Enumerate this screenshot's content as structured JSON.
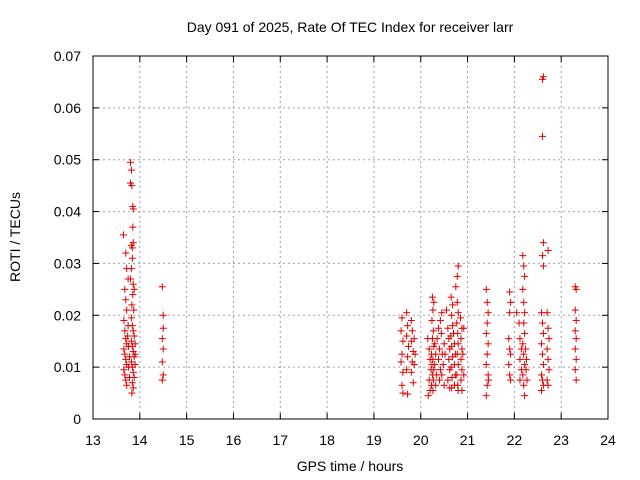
{
  "chart_data": {
    "type": "scatter",
    "title": "Day 091 of 2025, Rate Of TEC Index for receiver larr",
    "xlabel": "GPS time / hours",
    "ylabel": "ROTI / TECUs",
    "xlim": [
      13,
      24
    ],
    "ylim": [
      0,
      0.07
    ],
    "xticks": [
      "13",
      "14",
      "15",
      "16",
      "17",
      "18",
      "19",
      "20",
      "21",
      "22",
      "23",
      "24"
    ],
    "yticks": [
      "0",
      "0.01",
      "0.02",
      "0.03",
      "0.04",
      "0.05",
      "0.06",
      "0.07"
    ],
    "grid": true,
    "marker": "+",
    "color": "#e00000",
    "series": [
      {
        "name": "ROTI",
        "points": [
          [
            13.65,
            0.0355
          ],
          [
            13.7,
            0.032
          ],
          [
            13.72,
            0.029
          ],
          [
            13.75,
            0.027
          ],
          [
            13.68,
            0.025
          ],
          [
            13.7,
            0.023
          ],
          [
            13.72,
            0.021
          ],
          [
            13.66,
            0.019
          ],
          [
            13.68,
            0.017
          ],
          [
            13.7,
            0.0155
          ],
          [
            13.72,
            0.0145
          ],
          [
            13.66,
            0.0135
          ],
          [
            13.68,
            0.0125
          ],
          [
            13.7,
            0.0115
          ],
          [
            13.72,
            0.0105
          ],
          [
            13.66,
            0.0095
          ],
          [
            13.68,
            0.0085
          ],
          [
            13.7,
            0.0075
          ],
          [
            13.72,
            0.0065
          ],
          [
            13.75,
            0.018
          ],
          [
            13.74,
            0.016
          ],
          [
            13.76,
            0.014
          ],
          [
            13.78,
            0.012
          ],
          [
            13.76,
            0.01
          ],
          [
            13.78,
            0.008
          ],
          [
            13.8,
            0.0495
          ],
          [
            13.82,
            0.048
          ],
          [
            13.8,
            0.0455
          ],
          [
            13.83,
            0.045
          ],
          [
            13.85,
            0.041
          ],
          [
            13.86,
            0.0405
          ],
          [
            13.85,
            0.037
          ],
          [
            13.82,
            0.0335
          ],
          [
            13.84,
            0.033
          ],
          [
            13.86,
            0.034
          ],
          [
            13.84,
            0.031
          ],
          [
            13.82,
            0.029
          ],
          [
            13.8,
            0.027
          ],
          [
            13.86,
            0.026
          ],
          [
            13.88,
            0.025
          ],
          [
            13.85,
            0.024
          ],
          [
            13.83,
            0.022
          ],
          [
            13.87,
            0.021
          ],
          [
            13.82,
            0.0195
          ],
          [
            13.84,
            0.018
          ],
          [
            13.86,
            0.017
          ],
          [
            13.88,
            0.016
          ],
          [
            13.82,
            0.015
          ],
          [
            13.84,
            0.014
          ],
          [
            13.86,
            0.013
          ],
          [
            13.88,
            0.012
          ],
          [
            13.82,
            0.011
          ],
          [
            13.84,
            0.01
          ],
          [
            13.86,
            0.009
          ],
          [
            13.88,
            0.008
          ],
          [
            13.84,
            0.007
          ],
          [
            13.86,
            0.006
          ],
          [
            13.83,
            0.005
          ],
          [
            13.9,
            0.0145
          ],
          [
            13.9,
            0.0125
          ],
          [
            13.9,
            0.0105
          ],
          [
            14.48,
            0.0255
          ],
          [
            14.5,
            0.02
          ],
          [
            14.5,
            0.0175
          ],
          [
            14.48,
            0.0155
          ],
          [
            14.5,
            0.0135
          ],
          [
            14.48,
            0.011
          ],
          [
            14.5,
            0.0085
          ],
          [
            14.48,
            0.0075
          ],
          [
            19.6,
            0.0195
          ],
          [
            19.58,
            0.017
          ],
          [
            19.62,
            0.015
          ],
          [
            19.6,
            0.0125
          ],
          [
            19.58,
            0.011
          ],
          [
            19.62,
            0.009
          ],
          [
            19.6,
            0.0065
          ],
          [
            19.62,
            0.005
          ],
          [
            19.7,
            0.0205
          ],
          [
            19.72,
            0.018
          ],
          [
            19.7,
            0.016
          ],
          [
            19.74,
            0.014
          ],
          [
            19.72,
            0.012
          ],
          [
            19.7,
            0.0095
          ],
          [
            19.72,
            0.0048
          ],
          [
            19.8,
            0.019
          ],
          [
            19.82,
            0.017
          ],
          [
            19.8,
            0.015
          ],
          [
            19.84,
            0.013
          ],
          [
            19.82,
            0.011
          ],
          [
            19.8,
            0.009
          ],
          [
            19.84,
            0.007
          ],
          [
            19.86,
            0.0155
          ],
          [
            19.86,
            0.0105
          ],
          [
            19.88,
            0.0125
          ],
          [
            20.15,
            0.0155
          ],
          [
            20.18,
            0.0135
          ],
          [
            20.2,
            0.0115
          ],
          [
            20.22,
            0.0095
          ],
          [
            20.18,
            0.0075
          ],
          [
            20.2,
            0.0055
          ],
          [
            20.16,
            0.0045
          ],
          [
            20.25,
            0.0235
          ],
          [
            20.28,
            0.0225
          ],
          [
            20.26,
            0.021
          ],
          [
            20.24,
            0.019
          ],
          [
            20.27,
            0.017
          ],
          [
            20.25,
            0.0155
          ],
          [
            20.28,
            0.014
          ],
          [
            20.23,
            0.0125
          ],
          [
            20.26,
            0.0115
          ],
          [
            20.24,
            0.0105
          ],
          [
            20.28,
            0.0095
          ],
          [
            20.25,
            0.0085
          ],
          [
            20.27,
            0.0075
          ],
          [
            20.23,
            0.0065
          ],
          [
            20.26,
            0.0055
          ],
          [
            20.3,
            0.0145
          ],
          [
            20.32,
            0.0125
          ],
          [
            20.3,
            0.0105
          ],
          [
            20.34,
            0.0085
          ],
          [
            20.32,
            0.0065
          ],
          [
            20.35,
            0.0155
          ],
          [
            20.38,
            0.0175
          ],
          [
            20.4,
            0.0135
          ],
          [
            20.38,
            0.0115
          ],
          [
            20.42,
            0.0095
          ],
          [
            20.4,
            0.0075
          ],
          [
            20.42,
            0.019
          ],
          [
            20.45,
            0.0205
          ],
          [
            20.44,
            0.0165
          ],
          [
            20.46,
            0.0125
          ],
          [
            20.48,
            0.0105
          ],
          [
            20.45,
            0.0085
          ],
          [
            20.5,
            0.0145
          ],
          [
            20.52,
            0.0125
          ],
          [
            20.5,
            0.0065
          ],
          [
            20.55,
            0.021
          ],
          [
            20.58,
            0.0175
          ],
          [
            20.6,
            0.0155
          ],
          [
            20.62,
            0.0135
          ],
          [
            20.6,
            0.0115
          ],
          [
            20.62,
            0.0095
          ],
          [
            20.58,
            0.0075
          ],
          [
            20.62,
            0.006
          ],
          [
            20.65,
            0.0235
          ],
          [
            20.68,
            0.022
          ],
          [
            20.66,
            0.02
          ],
          [
            20.68,
            0.018
          ],
          [
            20.64,
            0.016
          ],
          [
            20.66,
            0.014
          ],
          [
            20.68,
            0.012
          ],
          [
            20.65,
            0.01
          ],
          [
            20.67,
            0.008
          ],
          [
            20.66,
            0.006
          ],
          [
            20.7,
            0.0165
          ],
          [
            20.72,
            0.0145
          ],
          [
            20.74,
            0.0125
          ],
          [
            20.72,
            0.0105
          ],
          [
            20.74,
            0.0085
          ],
          [
            20.72,
            0.0065
          ],
          [
            20.75,
            0.0255
          ],
          [
            20.78,
            0.0275
          ],
          [
            20.8,
            0.0295
          ],
          [
            20.78,
            0.0225
          ],
          [
            20.8,
            0.0205
          ],
          [
            20.77,
            0.0185
          ],
          [
            20.79,
            0.0165
          ],
          [
            20.8,
            0.0145
          ],
          [
            20.78,
            0.0125
          ],
          [
            20.8,
            0.0105
          ],
          [
            20.77,
            0.0085
          ],
          [
            20.79,
            0.0065
          ],
          [
            20.8,
            0.0055
          ],
          [
            20.85,
            0.0195
          ],
          [
            20.88,
            0.0175
          ],
          [
            20.86,
            0.0155
          ],
          [
            20.88,
            0.0135
          ],
          [
            20.86,
            0.0115
          ],
          [
            20.88,
            0.0095
          ],
          [
            20.86,
            0.0075
          ],
          [
            20.88,
            0.0055
          ],
          [
            20.92,
            0.0175
          ],
          [
            20.9,
            0.0125
          ],
          [
            20.92,
            0.0085
          ],
          [
            21.4,
            0.025
          ],
          [
            21.42,
            0.0225
          ],
          [
            21.44,
            0.0205
          ],
          [
            21.42,
            0.0185
          ],
          [
            21.4,
            0.0165
          ],
          [
            21.44,
            0.0145
          ],
          [
            21.42,
            0.0125
          ],
          [
            21.4,
            0.0105
          ],
          [
            21.44,
            0.0085
          ],
          [
            21.42,
            0.0065
          ],
          [
            21.4,
            0.0045
          ],
          [
            21.45,
            0.0075
          ],
          [
            21.9,
            0.0245
          ],
          [
            21.92,
            0.0225
          ],
          [
            21.9,
            0.0205
          ],
          [
            21.88,
            0.0155
          ],
          [
            21.9,
            0.0135
          ],
          [
            21.92,
            0.0125
          ],
          [
            21.88,
            0.0105
          ],
          [
            21.9,
            0.0085
          ],
          [
            21.92,
            0.0075
          ],
          [
            22.05,
            0.0205
          ],
          [
            22.1,
            0.0185
          ],
          [
            22.12,
            0.0155
          ],
          [
            22.15,
            0.0135
          ],
          [
            22.12,
            0.0115
          ],
          [
            22.15,
            0.0095
          ],
          [
            22.12,
            0.0075
          ],
          [
            22.18,
            0.0315
          ],
          [
            22.2,
            0.0295
          ],
          [
            22.22,
            0.0275
          ],
          [
            22.18,
            0.025
          ],
          [
            22.2,
            0.0225
          ],
          [
            22.22,
            0.0205
          ],
          [
            22.2,
            0.0185
          ],
          [
            22.22,
            0.0165
          ],
          [
            22.18,
            0.0145
          ],
          [
            22.2,
            0.0125
          ],
          [
            22.22,
            0.0105
          ],
          [
            22.18,
            0.0085
          ],
          [
            22.2,
            0.0065
          ],
          [
            22.22,
            0.0045
          ],
          [
            22.24,
            0.0135
          ],
          [
            22.26,
            0.0115
          ],
          [
            22.25,
            0.0095
          ],
          [
            22.27,
            0.0075
          ],
          [
            22.6,
            0.0655
          ],
          [
            22.62,
            0.066
          ],
          [
            22.6,
            0.0545
          ],
          [
            22.62,
            0.034
          ],
          [
            22.6,
            0.0315
          ],
          [
            22.62,
            0.0295
          ],
          [
            22.58,
            0.0205
          ],
          [
            22.6,
            0.0185
          ],
          [
            22.62,
            0.0165
          ],
          [
            22.58,
            0.0145
          ],
          [
            22.6,
            0.0125
          ],
          [
            22.62,
            0.0105
          ],
          [
            22.58,
            0.0085
          ],
          [
            22.6,
            0.0075
          ],
          [
            22.62,
            0.0065
          ],
          [
            22.58,
            0.0055
          ],
          [
            22.72,
            0.0325
          ],
          [
            22.7,
            0.0205
          ],
          [
            22.72,
            0.0175
          ],
          [
            22.74,
            0.0155
          ],
          [
            22.7,
            0.0135
          ],
          [
            22.72,
            0.0115
          ],
          [
            22.74,
            0.0095
          ],
          [
            22.7,
            0.0075
          ],
          [
            22.72,
            0.0065
          ],
          [
            23.3,
            0.0255
          ],
          [
            23.32,
            0.025
          ],
          [
            23.3,
            0.021
          ],
          [
            23.32,
            0.019
          ],
          [
            23.3,
            0.017
          ],
          [
            23.32,
            0.0155
          ],
          [
            23.3,
            0.0135
          ],
          [
            23.32,
            0.0115
          ],
          [
            23.3,
            0.0095
          ],
          [
            23.32,
            0.0075
          ]
        ]
      }
    ]
  }
}
